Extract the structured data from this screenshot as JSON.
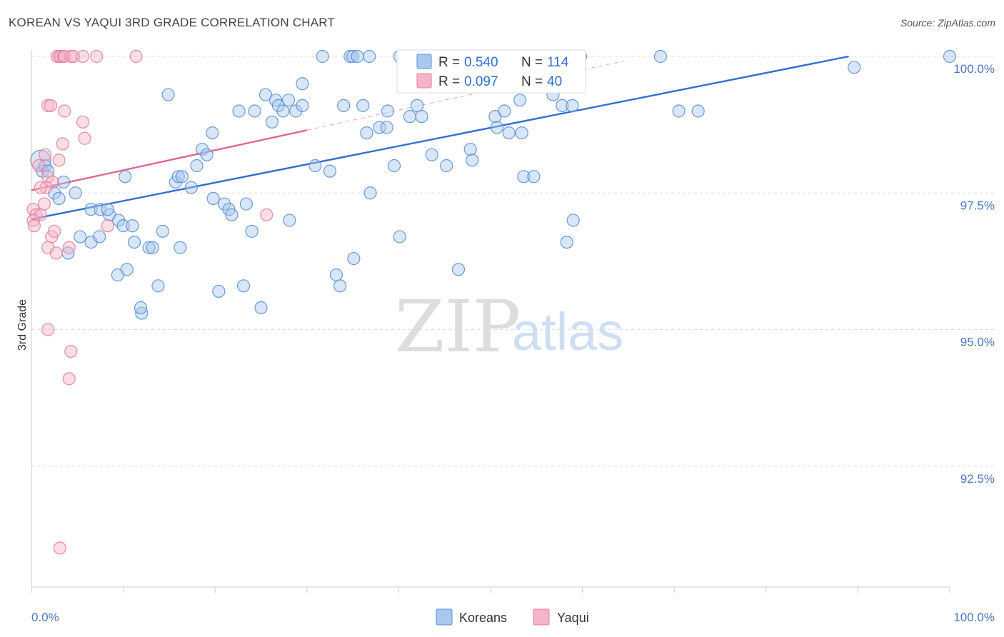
{
  "title": "KOREAN VS YAQUI 3RD GRADE CORRELATION CHART",
  "source": "Source: ZipAtlas.com",
  "watermark": {
    "part1": "ZIP",
    "part2": "atlas"
  },
  "colors": {
    "koreans_fill": "#a9c8ee",
    "koreans_stroke": "#5b8fd6",
    "koreans_line": "#2f6fd0",
    "yaqui_fill": "#f5b5c8",
    "yaqui_stroke": "#e87d9f",
    "yaqui_line": "#e0668f",
    "grid": "#dcdcdc",
    "axis_text": "#4a78c0"
  },
  "legend": {
    "koreans": {
      "r_label": "R = ",
      "r_value": "0.540",
      "n_label": "N = ",
      "n_value": "114"
    },
    "yaqui": {
      "r_label": "R = ",
      "r_value": "0.097",
      "n_label": "N = ",
      "n_value": "40"
    }
  },
  "chart_data": {
    "type": "scatter",
    "title": "KOREAN VS YAQUI 3RD GRADE CORRELATION CHART",
    "xlabel": "",
    "ylabel": "3rd Grade",
    "xlim": [
      0,
      100
    ],
    "ylim": [
      90.0,
      100.4
    ],
    "x_tick_labels": [
      "0.0%",
      "100.0%"
    ],
    "y_ticks": [
      100.0,
      97.5,
      95.0,
      92.5
    ],
    "y_tick_labels": [
      "100.0%",
      "97.5%",
      "95.0%",
      "92.5%"
    ],
    "grid": true,
    "legend_position": "bottom-center",
    "series": [
      {
        "name": "Koreans",
        "R": 0.54,
        "N": 114,
        "trend": {
          "x": [
            0,
            89
          ],
          "y": [
            97.02,
            100.0
          ]
        },
        "points": [
          [
            1.0,
            98.1
          ],
          [
            1.2,
            97.9
          ],
          [
            1.5,
            98.0
          ],
          [
            1.8,
            97.9
          ],
          [
            3.5,
            97.7
          ],
          [
            2.5,
            97.5
          ],
          [
            4.8,
            97.5
          ],
          [
            3.0,
            97.4
          ],
          [
            6.5,
            97.2
          ],
          [
            7.5,
            97.2
          ],
          [
            8.5,
            97.1
          ],
          [
            9.5,
            97.0
          ],
          [
            8.3,
            97.2
          ],
          [
            5.3,
            96.7
          ],
          [
            6.5,
            96.6
          ],
          [
            7.4,
            96.7
          ],
          [
            10.0,
            96.9
          ],
          [
            11.0,
            96.9
          ],
          [
            11.2,
            96.6
          ],
          [
            12.8,
            96.5
          ],
          [
            13.2,
            96.5
          ],
          [
            14.3,
            96.8
          ],
          [
            4.0,
            96.4
          ],
          [
            16.2,
            96.5
          ],
          [
            9.4,
            96.0
          ],
          [
            10.4,
            96.1
          ],
          [
            13.8,
            95.8
          ],
          [
            12.0,
            95.3
          ],
          [
            11.9,
            95.4
          ],
          [
            20.4,
            95.7
          ],
          [
            23.1,
            95.8
          ],
          [
            25.0,
            95.4
          ],
          [
            10.2,
            97.8
          ],
          [
            15.7,
            97.7
          ],
          [
            16.0,
            97.8
          ],
          [
            16.4,
            97.8
          ],
          [
            17.4,
            97.6
          ],
          [
            18.0,
            98.0
          ],
          [
            18.6,
            98.3
          ],
          [
            19.1,
            98.2
          ],
          [
            19.7,
            98.6
          ],
          [
            19.8,
            97.4
          ],
          [
            21.0,
            97.3
          ],
          [
            21.5,
            97.2
          ],
          [
            21.8,
            97.1
          ],
          [
            23.4,
            97.3
          ],
          [
            24.0,
            96.8
          ],
          [
            28.1,
            97.0
          ],
          [
            14.9,
            99.3
          ],
          [
            22.6,
            99.0
          ],
          [
            24.3,
            99.0
          ],
          [
            25.5,
            99.3
          ],
          [
            26.2,
            98.8
          ],
          [
            26.6,
            99.2
          ],
          [
            26.9,
            99.1
          ],
          [
            27.4,
            99.0
          ],
          [
            28.0,
            99.2
          ],
          [
            28.8,
            99.0
          ],
          [
            29.5,
            99.1
          ],
          [
            29.5,
            99.5
          ],
          [
            30.9,
            98.0
          ],
          [
            31.7,
            100.0
          ],
          [
            32.5,
            97.9
          ],
          [
            33.2,
            96.0
          ],
          [
            33.6,
            95.8
          ],
          [
            34.0,
            99.1
          ],
          [
            34.7,
            100.0
          ],
          [
            35.0,
            100.0
          ],
          [
            35.5,
            100.0
          ],
          [
            35.1,
            96.3
          ],
          [
            36.1,
            99.1
          ],
          [
            36.8,
            100.0
          ],
          [
            36.9,
            97.5
          ],
          [
            36.5,
            98.6
          ],
          [
            37.9,
            98.7
          ],
          [
            38.7,
            98.7
          ],
          [
            38.8,
            99.0
          ],
          [
            39.5,
            98.0
          ],
          [
            40.1,
            96.7
          ],
          [
            40.1,
            100.0
          ],
          [
            41.2,
            98.9
          ],
          [
            42.0,
            99.1
          ],
          [
            42.5,
            98.9
          ],
          [
            43.6,
            98.2
          ],
          [
            45.2,
            98.0
          ],
          [
            46.5,
            96.1
          ],
          [
            47.8,
            98.3
          ],
          [
            48.0,
            98.1
          ],
          [
            47.0,
            100.0
          ],
          [
            50.5,
            98.9
          ],
          [
            50.7,
            98.7
          ],
          [
            51.5,
            99.0
          ],
          [
            52.0,
            98.6
          ],
          [
            53.2,
            99.2
          ],
          [
            53.4,
            98.6
          ],
          [
            53.6,
            97.8
          ],
          [
            54.7,
            97.8
          ],
          [
            56.8,
            99.3
          ],
          [
            57.8,
            99.1
          ],
          [
            58.9,
            99.1
          ],
          [
            59.0,
            97.0
          ],
          [
            58.3,
            96.6
          ],
          [
            59.8,
            100.0
          ],
          [
            68.5,
            100.0
          ],
          [
            70.5,
            99.0
          ],
          [
            72.6,
            99.0
          ],
          [
            89.6,
            99.8
          ],
          [
            100.0,
            100.0
          ],
          [
            43.5,
            100.0
          ],
          [
            55.0,
            100.0
          ],
          [
            42.0,
            100.0
          ]
        ]
      },
      {
        "name": "Yaqui",
        "R": 0.097,
        "N": 40,
        "trend": {
          "x": [
            0,
            30
          ],
          "y": [
            97.55,
            98.65
          ]
        },
        "points": [
          [
            2.8,
            100.0
          ],
          [
            3.0,
            100.0
          ],
          [
            3.2,
            100.0
          ],
          [
            3.5,
            100.0
          ],
          [
            3.6,
            100.0
          ],
          [
            4.3,
            100.0
          ],
          [
            4.6,
            100.0
          ],
          [
            5.6,
            100.0
          ],
          [
            7.1,
            100.0
          ],
          [
            11.4,
            100.0
          ],
          [
            1.8,
            99.1
          ],
          [
            2.1,
            99.1
          ],
          [
            3.6,
            99.0
          ],
          [
            5.6,
            98.8
          ],
          [
            5.8,
            98.5
          ],
          [
            3.4,
            98.4
          ],
          [
            3.0,
            98.1
          ],
          [
            1.5,
            98.2
          ],
          [
            1.8,
            97.8
          ],
          [
            2.3,
            97.7
          ],
          [
            1.6,
            97.6
          ],
          [
            0.2,
            97.2
          ],
          [
            0.5,
            97.1
          ],
          [
            1.0,
            97.1
          ],
          [
            0.2,
            97.0
          ],
          [
            0.3,
            96.9
          ],
          [
            2.2,
            96.7
          ],
          [
            2.5,
            96.8
          ],
          [
            1.8,
            96.5
          ],
          [
            4.1,
            96.5
          ],
          [
            2.7,
            96.4
          ],
          [
            8.3,
            96.9
          ],
          [
            25.6,
            97.1
          ],
          [
            1.8,
            95.0
          ],
          [
            4.3,
            94.6
          ],
          [
            4.1,
            94.1
          ],
          [
            3.1,
            91.0
          ],
          [
            1.0,
            97.6
          ],
          [
            0.8,
            98.0
          ],
          [
            1.4,
            97.3
          ]
        ]
      }
    ]
  }
}
